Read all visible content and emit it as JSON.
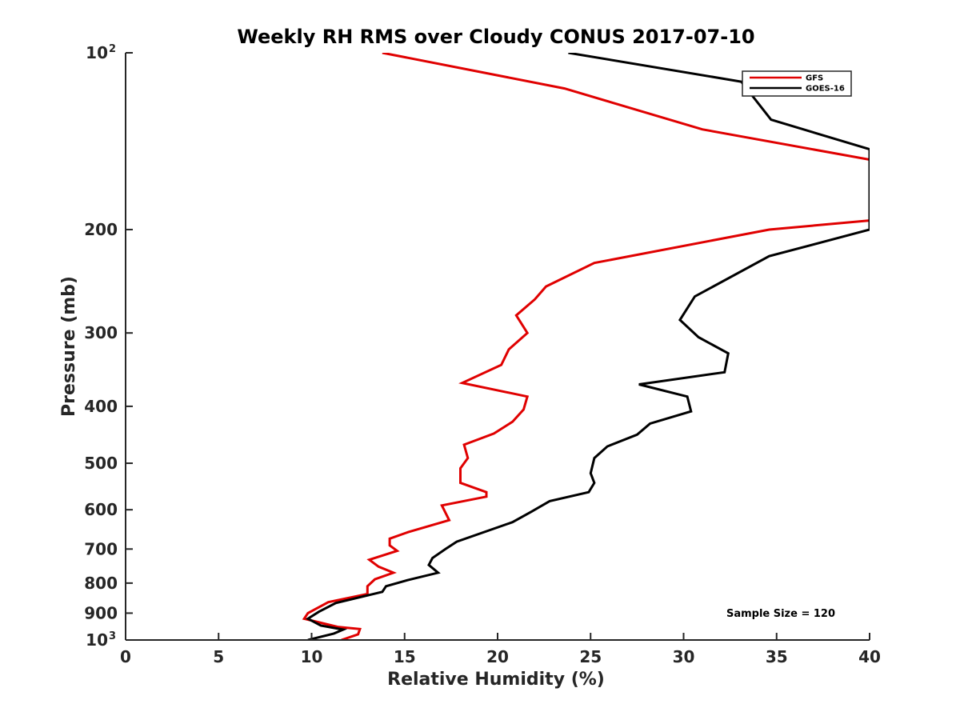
{
  "chart_data": {
    "type": "line",
    "title": "Weekly RH RMS over Cloudy CONUS 2017-07-10",
    "xlabel": "Relative Humidity (%)",
    "ylabel": "Pressure (mb)",
    "xlim": [
      0,
      40
    ],
    "ylim": [
      100,
      1000
    ],
    "y_scale": "log",
    "y_reversed": true,
    "grid": false,
    "legend_position": "top-right",
    "x_ticks": [
      0,
      5,
      10,
      15,
      20,
      25,
      30,
      35,
      40
    ],
    "y_ticks": [
      {
        "value": 100,
        "label": "10",
        "exp": "2"
      },
      {
        "value": 200,
        "label": "200"
      },
      {
        "value": 300,
        "label": "300"
      },
      {
        "value": 400,
        "label": "400"
      },
      {
        "value": 500,
        "label": "500"
      },
      {
        "value": 600,
        "label": "600"
      },
      {
        "value": 700,
        "label": "700"
      },
      {
        "value": 800,
        "label": "800"
      },
      {
        "value": 900,
        "label": "900"
      },
      {
        "value": 1000,
        "label": "10",
        "exp": "3"
      }
    ],
    "annotation": "Sample Size = 120",
    "series": [
      {
        "name": "GFS",
        "color": "#e00000",
        "points": [
          [
            13.8,
            100
          ],
          [
            23.6,
            115
          ],
          [
            31.0,
            135
          ],
          [
            40.0,
            152
          ],
          [
            40.0,
            193
          ],
          [
            34.6,
            200
          ],
          [
            25.2,
            228
          ],
          [
            22.6,
            250
          ],
          [
            22.0,
            263
          ],
          [
            21.0,
            280
          ],
          [
            21.6,
            300
          ],
          [
            20.6,
            320
          ],
          [
            20.2,
            340
          ],
          [
            18.1,
            365
          ],
          [
            21.6,
            385
          ],
          [
            21.4,
            405
          ],
          [
            20.8,
            425
          ],
          [
            19.8,
            445
          ],
          [
            18.2,
            465
          ],
          [
            18.4,
            490
          ],
          [
            18.0,
            510
          ],
          [
            18.0,
            540
          ],
          [
            19.4,
            560
          ],
          [
            19.4,
            570
          ],
          [
            17.0,
            590
          ],
          [
            17.4,
            625
          ],
          [
            15.2,
            655
          ],
          [
            14.2,
            672
          ],
          [
            14.2,
            690
          ],
          [
            14.6,
            705
          ],
          [
            13.1,
            730
          ],
          [
            13.6,
            750
          ],
          [
            14.4,
            768
          ],
          [
            13.4,
            788
          ],
          [
            13.0,
            810
          ],
          [
            13.0,
            835
          ],
          [
            10.9,
            862
          ],
          [
            9.8,
            900
          ],
          [
            9.6,
            920
          ],
          [
            11.4,
            950
          ],
          [
            12.6,
            958
          ],
          [
            12.5,
            978
          ],
          [
            11.6,
            1000
          ]
        ]
      },
      {
        "name": "GOES-16",
        "color": "#000000",
        "points": [
          [
            23.8,
            100
          ],
          [
            33.1,
            112
          ],
          [
            34.7,
            130
          ],
          [
            40.0,
            146
          ],
          [
            40.0,
            200
          ],
          [
            34.6,
            222
          ],
          [
            30.6,
            260
          ],
          [
            29.8,
            285
          ],
          [
            30.8,
            305
          ],
          [
            32.4,
            325
          ],
          [
            32.2,
            350
          ],
          [
            27.6,
            367
          ],
          [
            30.2,
            385
          ],
          [
            30.4,
            408
          ],
          [
            28.2,
            428
          ],
          [
            27.5,
            447
          ],
          [
            25.9,
            468
          ],
          [
            25.2,
            490
          ],
          [
            25.0,
            520
          ],
          [
            25.2,
            540
          ],
          [
            24.9,
            560
          ],
          [
            22.8,
            580
          ],
          [
            21.8,
            605
          ],
          [
            20.8,
            630
          ],
          [
            17.8,
            680
          ],
          [
            17.2,
            700
          ],
          [
            16.5,
            725
          ],
          [
            16.3,
            745
          ],
          [
            16.8,
            768
          ],
          [
            15.2,
            790
          ],
          [
            14.0,
            810
          ],
          [
            13.8,
            828
          ],
          [
            11.3,
            865
          ],
          [
            10.4,
            895
          ],
          [
            9.8,
            920
          ],
          [
            10.5,
            945
          ],
          [
            11.7,
            960
          ],
          [
            11.2,
            975
          ],
          [
            9.8,
            1000
          ]
        ]
      }
    ]
  }
}
